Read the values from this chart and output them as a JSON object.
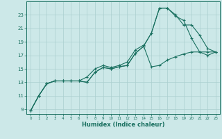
{
  "xlabel": "Humidex (Indice chaleur)",
  "bg_color": "#cce8e8",
  "line_color": "#1a7060",
  "grid_color": "#aacfcf",
  "line1_y": [
    8.8,
    11.0,
    12.8,
    13.2,
    13.2,
    13.2,
    13.2,
    13.0,
    14.5,
    15.2,
    15.0,
    15.3,
    15.5,
    17.3,
    18.3,
    20.3,
    24.0,
    24.0,
    23.0,
    21.5,
    21.5,
    20.0,
    18.0,
    17.5
  ],
  "line2_y": [
    8.8,
    11.0,
    12.8,
    13.2,
    13.2,
    13.2,
    13.2,
    13.0,
    14.5,
    15.2,
    15.0,
    15.3,
    15.5,
    17.3,
    18.3,
    20.3,
    24.0,
    24.0,
    22.8,
    22.2,
    19.5,
    17.5,
    17.0,
    17.5
  ],
  "line3_y": [
    8.8,
    11.0,
    12.8,
    13.2,
    13.2,
    13.2,
    13.2,
    13.8,
    15.0,
    15.5,
    15.2,
    15.5,
    16.0,
    17.8,
    18.5,
    15.3,
    15.5,
    16.3,
    16.8,
    17.2,
    17.5,
    17.5,
    17.5,
    17.5
  ],
  "xlim": [
    -0.5,
    23.5
  ],
  "ylim": [
    8.3,
    25.0
  ],
  "yticks": [
    9,
    11,
    13,
    15,
    17,
    19,
    21,
    23
  ],
  "xticks": [
    0,
    1,
    2,
    3,
    4,
    5,
    6,
    7,
    8,
    9,
    10,
    11,
    12,
    13,
    14,
    15,
    16,
    17,
    18,
    19,
    20,
    21,
    22,
    23
  ]
}
